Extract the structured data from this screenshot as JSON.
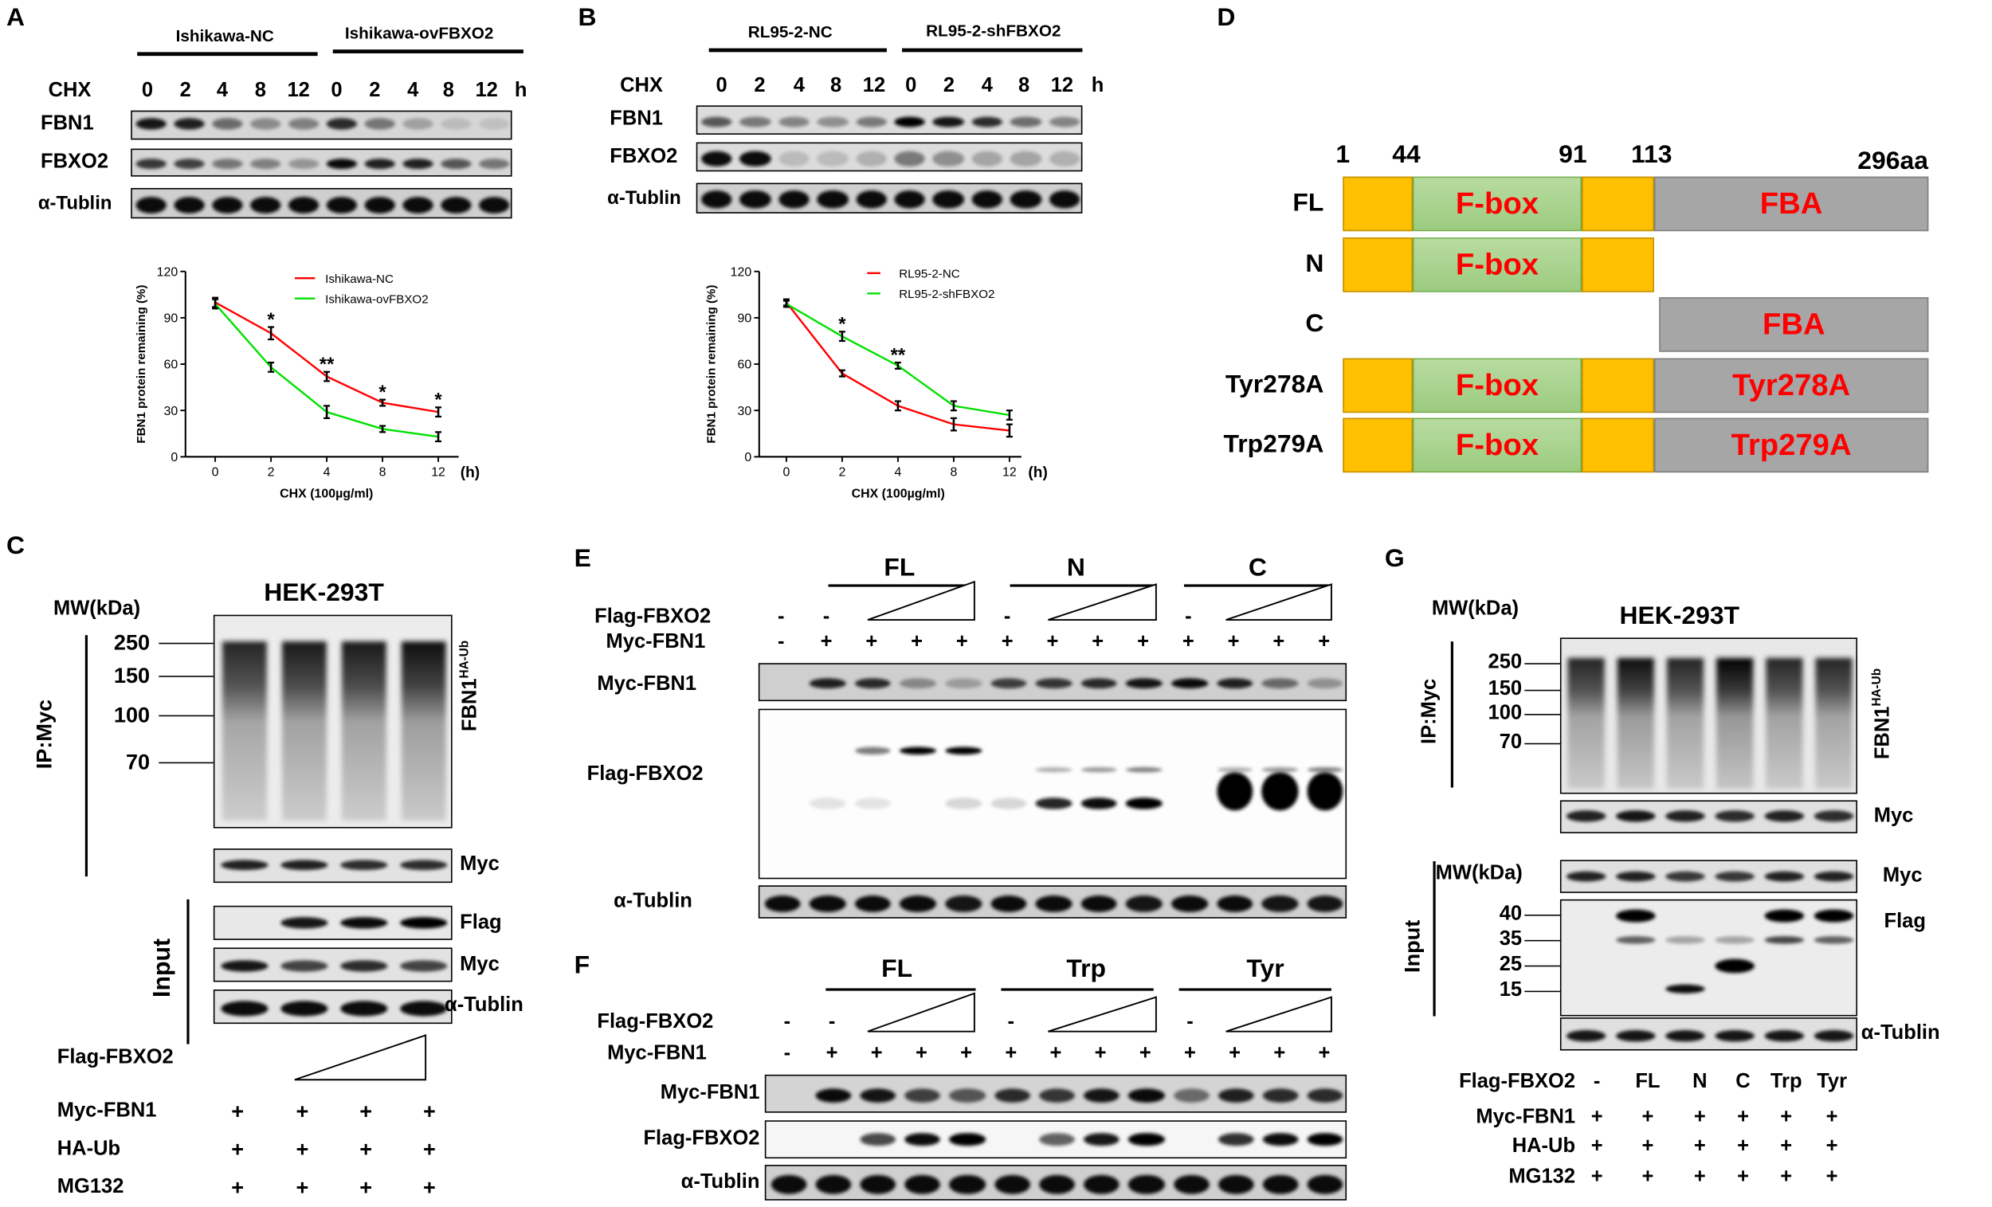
{
  "panels": {
    "a": "A",
    "b": "B",
    "c": "C",
    "d": "D",
    "e": "E",
    "f": "F",
    "g": "G"
  },
  "panel_a": {
    "groups": [
      "Ishikawa-NC",
      "Ishikawa-ovFBXO2"
    ],
    "chx_label": "CHX",
    "times": [
      "0",
      "2",
      "4",
      "8",
      "12",
      "0",
      "2",
      "4",
      "8",
      "12"
    ],
    "unit": "h",
    "rows": [
      "FBN1",
      "FBXO2",
      "α-Tublin"
    ],
    "bands": {
      "fbn1": [
        0.9,
        0.85,
        0.5,
        0.35,
        0.4,
        0.8,
        0.45,
        0.25,
        0.12,
        0.1
      ],
      "fbxo2": [
        0.75,
        0.7,
        0.45,
        0.4,
        0.3,
        0.95,
        0.85,
        0.85,
        0.6,
        0.45
      ],
      "tublin": [
        0.95,
        0.95,
        0.95,
        0.95,
        0.95,
        0.95,
        0.95,
        0.95,
        0.95,
        0.95
      ]
    }
  },
  "panel_b": {
    "groups": [
      "RL95-2-NC",
      "RL95-2-shFBXO2"
    ],
    "chx_label": "CHX",
    "times": [
      "0",
      "2",
      "4",
      "8",
      "12",
      "0",
      "2",
      "4",
      "8",
      "12"
    ],
    "unit": "h",
    "rows": [
      "FBN1",
      "FBXO2",
      "α-Tublin"
    ],
    "bands": {
      "fbn1": [
        0.6,
        0.45,
        0.4,
        0.35,
        0.45,
        1,
        0.9,
        0.8,
        0.5,
        0.4
      ],
      "fbxo2": [
        0.95,
        0.95,
        0.15,
        0.15,
        0.2,
        0.45,
        0.35,
        0.25,
        0.25,
        0.2
      ],
      "tublin": [
        0.95,
        0.95,
        0.95,
        0.95,
        0.95,
        0.95,
        0.95,
        0.95,
        0.95,
        0.95
      ]
    }
  },
  "panel_c": {
    "cell_line": "HEK-293T",
    "mw_title": "MW(kDa)",
    "mw_markers": [
      "250",
      "150",
      "100",
      "70"
    ],
    "ip_label": "IP:Myc",
    "input_label": "Input",
    "ub_label": "FBN1",
    "ub_sup": "HA-Ub",
    "blot_labels": {
      "ip_myc": "Myc",
      "flag": "Flag",
      "input_myc": "Myc",
      "tublin": "α-Tublin"
    },
    "conditions": [
      {
        "label": "Flag-FBXO2",
        "values": [
          "",
          "",
          "",
          ""
        ]
      },
      {
        "label": "Myc-FBN1",
        "values": [
          "+",
          "+",
          "+",
          "+"
        ]
      },
      {
        "label": "HA-Ub",
        "values": [
          "+",
          "+",
          "+",
          "+"
        ]
      },
      {
        "label": "MG132",
        "values": [
          "+",
          "+",
          "+",
          "+"
        ]
      }
    ],
    "bands": {
      "ip_smear": [
        0.85,
        0.9,
        0.9,
        0.95
      ],
      "ip_myc": [
        0.85,
        0.85,
        0.8,
        0.8
      ],
      "flag": [
        0,
        0.9,
        0.95,
        1
      ],
      "input_myc": [
        0.9,
        0.7,
        0.8,
        0.7
      ],
      "tublin": [
        0.95,
        0.95,
        0.95,
        0.95
      ]
    }
  },
  "panel_d": {
    "positions": [
      "1",
      "44",
      "91",
      "113",
      "296aa"
    ],
    "colors": {
      "linker": "#ffc000",
      "fbox": "#a9d18e",
      "fba": "#a6a6a6",
      "label": "#ff0000"
    },
    "constructs": [
      {
        "name": "FL",
        "segments": [
          {
            "kind": "linker",
            "start": 1,
            "end": 44,
            "label": ""
          },
          {
            "kind": "fbox",
            "start": 44,
            "end": 91,
            "label": "F-box"
          },
          {
            "kind": "linker",
            "start": 91,
            "end": 113,
            "label": ""
          },
          {
            "kind": "fba",
            "start": 113,
            "end": 296,
            "label": "FBA"
          }
        ]
      },
      {
        "name": "N",
        "segments": [
          {
            "kind": "linker",
            "start": 1,
            "end": 44,
            "label": ""
          },
          {
            "kind": "fbox",
            "start": 44,
            "end": 91,
            "label": "F-box"
          },
          {
            "kind": "linker",
            "start": 91,
            "end": 113,
            "label": ""
          }
        ]
      },
      {
        "name": "C",
        "segments": [
          {
            "kind": "fba",
            "start": 113,
            "end": 296,
            "label": "FBA"
          }
        ]
      },
      {
        "name": "Tyr278A",
        "segments": [
          {
            "kind": "linker",
            "start": 1,
            "end": 44,
            "label": ""
          },
          {
            "kind": "fbox",
            "start": 44,
            "end": 91,
            "label": "F-box"
          },
          {
            "kind": "linker",
            "start": 91,
            "end": 113,
            "label": ""
          },
          {
            "kind": "fba",
            "start": 113,
            "end": 296,
            "label": "Tyr278A"
          }
        ]
      },
      {
        "name": "Trp279A",
        "segments": [
          {
            "kind": "linker",
            "start": 1,
            "end": 44,
            "label": ""
          },
          {
            "kind": "fbox",
            "start": 44,
            "end": 91,
            "label": "F-box"
          },
          {
            "kind": "linker",
            "start": 91,
            "end": 113,
            "label": ""
          },
          {
            "kind": "fba",
            "start": 113,
            "end": 296,
            "label": "Trp279A"
          }
        ]
      }
    ]
  },
  "panel_e": {
    "groups": [
      "FL",
      "N",
      "C"
    ],
    "conditions": [
      {
        "label": "Flag-FBXO2",
        "values": [
          "-",
          "-",
          "",
          "",
          "",
          "-",
          "",
          "",
          "",
          "-",
          "",
          "",
          ""
        ]
      },
      {
        "label": "Myc-FBN1",
        "values": [
          "-",
          "+",
          "+",
          "+",
          "+",
          "+",
          "+",
          "+",
          "+",
          "+",
          "+",
          "+",
          "+"
        ]
      }
    ],
    "blot_labels": {
      "myc": "Myc-FBN1",
      "flag": "Flag-FBXO2",
      "tublin": "α-Tublin"
    },
    "bands": {
      "myc": [
        0,
        0.85,
        0.8,
        0.35,
        0.25,
        0.7,
        0.75,
        0.8,
        0.9,
        0.95,
        0.85,
        0.5,
        0.3
      ],
      "flag": [
        [
          0,
          0,
          0.5,
          1,
          1,
          0,
          0,
          0,
          0,
          0,
          0,
          0,
          0
        ],
        [
          0,
          0,
          0,
          0,
          0,
          0,
          0.3,
          0.4,
          0.5,
          0,
          0.3,
          0.4,
          0.5
        ],
        [
          0,
          0,
          0,
          0,
          0,
          0,
          0,
          0,
          0,
          0,
          1,
          1,
          1
        ],
        [
          0,
          0.1,
          0.1,
          0,
          0.15,
          0.15,
          0.85,
          0.95,
          1,
          0,
          0,
          0,
          0
        ]
      ],
      "tublin": [
        0.95,
        0.95,
        0.95,
        0.95,
        0.9,
        0.95,
        0.95,
        0.95,
        0.9,
        0.95,
        0.95,
        0.9,
        0.9
      ]
    }
  },
  "panel_f": {
    "groups": [
      "FL",
      "Trp",
      "Tyr"
    ],
    "conditions": [
      {
        "label": "Flag-FBXO2",
        "values": [
          "-",
          "-",
          "",
          "",
          "",
          "-",
          "",
          "",
          "",
          "-",
          "",
          "",
          ""
        ]
      },
      {
        "label": "Myc-FBN1",
        "values": [
          "-",
          "+",
          "+",
          "+",
          "+",
          "+",
          "+",
          "+",
          "+",
          "+",
          "+",
          "+",
          "+"
        ]
      }
    ],
    "blot_labels": {
      "myc": "Myc-FBN1",
      "flag": "Flag-FBXO2",
      "tublin": "α-Tublin"
    },
    "bands": {
      "myc": [
        0,
        0.95,
        0.9,
        0.7,
        0.6,
        0.8,
        0.75,
        0.9,
        0.95,
        0.5,
        0.85,
        0.8,
        0.8
      ],
      "flag": [
        0,
        0,
        0.7,
        0.95,
        1,
        0,
        0.6,
        0.9,
        1,
        0,
        0.8,
        0.95,
        1
      ],
      "tublin": [
        0.95,
        0.95,
        0.95,
        0.95,
        0.95,
        0.95,
        0.95,
        0.95,
        0.95,
        0.95,
        0.95,
        0.95,
        0.95
      ]
    }
  },
  "panel_g": {
    "cell_line": "HEK-293T",
    "mw_title": "MW(kDa)",
    "mw_markers_ip": [
      "250",
      "150",
      "100",
      "70"
    ],
    "mw_markers_input": [
      "40",
      "35",
      "25",
      "15"
    ],
    "ip_label": "IP:Myc",
    "input_label": "Input",
    "ub_label": "FBN1",
    "ub_sup": "HA-Ub",
    "blot_labels": {
      "ip_myc": "Myc",
      "input_myc": "Myc",
      "flag": "Flag",
      "tublin": "α-Tublin"
    },
    "conditions": [
      {
        "label": "Flag-FBXO2",
        "values": [
          "-",
          "FL",
          "N",
          "C",
          "Trp",
          "Tyr"
        ]
      },
      {
        "label": "Myc-FBN1",
        "values": [
          "+",
          "+",
          "+",
          "+",
          "+",
          "+"
        ]
      },
      {
        "label": "HA-Ub",
        "values": [
          "+",
          "+",
          "+",
          "+",
          "+",
          "+"
        ]
      },
      {
        "label": "MG132",
        "values": [
          "+",
          "+",
          "+",
          "+",
          "+",
          "+"
        ]
      }
    ],
    "bands": {
      "ip_smear": [
        0.85,
        0.95,
        0.85,
        1,
        0.85,
        0.85
      ],
      "ip_myc": [
        0.85,
        0.9,
        0.85,
        0.8,
        0.85,
        0.8
      ],
      "input_myc": [
        0.85,
        0.85,
        0.75,
        0.75,
        0.85,
        0.85
      ],
      "flag": [
        [
          0,
          1,
          0,
          0,
          1,
          1
        ],
        [
          0,
          0.6,
          0.3,
          0.3,
          0.7,
          0.6
        ],
        [
          0,
          0,
          0,
          1,
          0,
          0
        ],
        [
          0,
          0,
          0.95,
          0,
          0,
          0
        ]
      ],
      "tublin": [
        0.9,
        0.9,
        0.9,
        0.9,
        0.9,
        0.9
      ]
    }
  },
  "chart_data": [
    {
      "type": "line",
      "title": "",
      "xlabel": "CHX (100µg/ml)",
      "x_unit": "(h)",
      "ylabel": "FBN1 protein remaining (%)",
      "categories": [
        "0",
        "2",
        "4",
        "8",
        "12"
      ],
      "yticks": [
        "0",
        "30",
        "60",
        "90",
        "120"
      ],
      "ylim": [
        0,
        120
      ],
      "grid": false,
      "legend": "top-right",
      "series": [
        {
          "name": "Ishikawa-NC",
          "color": "#ff0000",
          "values": [
            100,
            80,
            52,
            35,
            29
          ],
          "errors": [
            3,
            4,
            3,
            2,
            3
          ]
        },
        {
          "name": "Ishikawa-ovFBXO2",
          "color": "#00e000",
          "values": [
            99,
            58,
            29,
            18,
            13
          ],
          "errors": [
            3,
            3,
            4,
            2,
            3
          ]
        }
      ],
      "annotations": [
        {
          "x": "2",
          "text": "*"
        },
        {
          "x": "4",
          "text": "**"
        },
        {
          "x": "8",
          "text": "*"
        },
        {
          "x": "12",
          "text": "*"
        }
      ]
    },
    {
      "type": "line",
      "title": "",
      "xlabel": "CHX (100µg/ml)",
      "x_unit": "(h)",
      "ylabel": "FBN1 protein remaining (%)",
      "categories": [
        "0",
        "2",
        "4",
        "8",
        "12"
      ],
      "yticks": [
        "0",
        "30",
        "60",
        "90",
        "120"
      ],
      "ylim": [
        0,
        120
      ],
      "grid": false,
      "legend": "top-right",
      "series": [
        {
          "name": "RL95-2-NC",
          "color": "#ff0000",
          "values": [
            100,
            54,
            33,
            21,
            17
          ],
          "errors": [
            2,
            2,
            3,
            4,
            4
          ]
        },
        {
          "name": "RL95-2-shFBXO2",
          "color": "#00e000",
          "values": [
            99,
            78,
            59,
            33,
            27
          ],
          "errors": [
            2,
            3,
            2,
            3,
            3
          ]
        }
      ],
      "annotations": [
        {
          "x": "2",
          "text": "*"
        },
        {
          "x": "4",
          "text": "**"
        }
      ]
    }
  ]
}
